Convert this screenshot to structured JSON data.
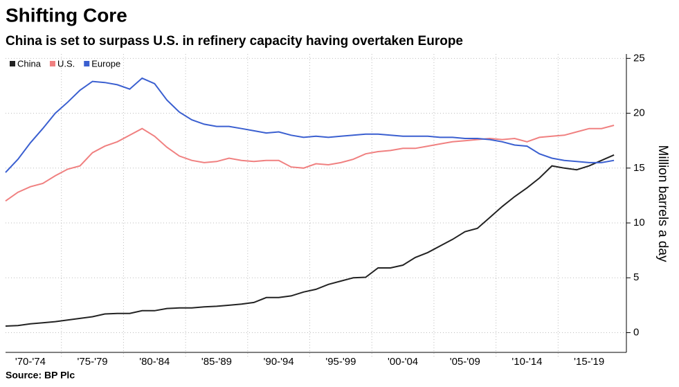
{
  "chart_data": {
    "type": "line",
    "title": "Shifting Core",
    "subtitle": "China is set to surpass U.S. in refinery capacity having overtaken Europe",
    "source": "Source: BP Plc",
    "ylabel": "Million barrels a day",
    "categories": [
      null,
      null,
      "'70-'74",
      null,
      null,
      null,
      null,
      "'75-'79",
      null,
      null,
      null,
      null,
      "'80-'84",
      null,
      null,
      null,
      null,
      "'85-'89",
      null,
      null,
      null,
      null,
      "'90-'94",
      null,
      null,
      null,
      null,
      "'95-'99",
      null,
      null,
      null,
      null,
      "'00-'04",
      null,
      null,
      null,
      null,
      "'05-'09",
      null,
      null,
      null,
      null,
      "'10-'14",
      null,
      null,
      null,
      null,
      "'15-'19",
      null,
      null
    ],
    "series": [
      {
        "name": "China",
        "color": "#222222",
        "values": [
          0.6,
          0.65,
          0.8,
          0.9,
          1.0,
          1.15,
          1.3,
          1.45,
          1.7,
          1.75,
          1.75,
          2.0,
          2.0,
          2.2,
          2.25,
          2.25,
          2.35,
          2.4,
          2.5,
          2.6,
          2.75,
          3.2,
          3.2,
          3.35,
          3.7,
          3.95,
          4.4,
          4.7,
          5.0,
          5.05,
          5.9,
          5.9,
          6.15,
          6.85,
          7.3,
          7.9,
          8.5,
          9.2,
          9.5,
          10.5,
          11.5,
          12.4,
          13.2,
          14.1,
          15.2,
          15.0,
          14.85,
          15.2,
          15.7,
          16.2
        ]
      },
      {
        "name": "U.S.",
        "color": "#f08080",
        "values": [
          12.0,
          12.8,
          13.3,
          13.6,
          14.3,
          14.9,
          15.2,
          16.4,
          17.0,
          17.4,
          18.0,
          18.6,
          17.9,
          16.9,
          16.1,
          15.7,
          15.5,
          15.6,
          15.9,
          15.7,
          15.6,
          15.7,
          15.7,
          15.1,
          15.0,
          15.4,
          15.3,
          15.5,
          15.8,
          16.3,
          16.5,
          16.6,
          16.8,
          16.8,
          17.0,
          17.2,
          17.4,
          17.5,
          17.6,
          17.7,
          17.6,
          17.7,
          17.4,
          17.8,
          17.9,
          18.0,
          18.3,
          18.6,
          18.6,
          18.9
        ]
      },
      {
        "name": "Europe",
        "color": "#3a5fd0",
        "values": [
          14.6,
          15.8,
          17.3,
          18.6,
          20.0,
          21.0,
          22.1,
          22.9,
          22.8,
          22.6,
          22.2,
          23.2,
          22.7,
          21.2,
          20.1,
          19.4,
          19.0,
          18.8,
          18.8,
          18.6,
          18.4,
          18.2,
          18.3,
          18.0,
          17.8,
          17.9,
          17.8,
          17.9,
          18.0,
          18.1,
          18.1,
          18.0,
          17.9,
          17.9,
          17.9,
          17.8,
          17.8,
          17.7,
          17.7,
          17.6,
          17.4,
          17.1,
          17.0,
          16.3,
          15.9,
          15.7,
          15.6,
          15.5,
          15.5,
          15.7
        ]
      }
    ],
    "ylim": [
      -1.8,
      25.4
    ],
    "yticks": [
      0,
      5,
      10,
      15,
      20,
      25
    ],
    "grid": true,
    "legend": "top-left"
  }
}
